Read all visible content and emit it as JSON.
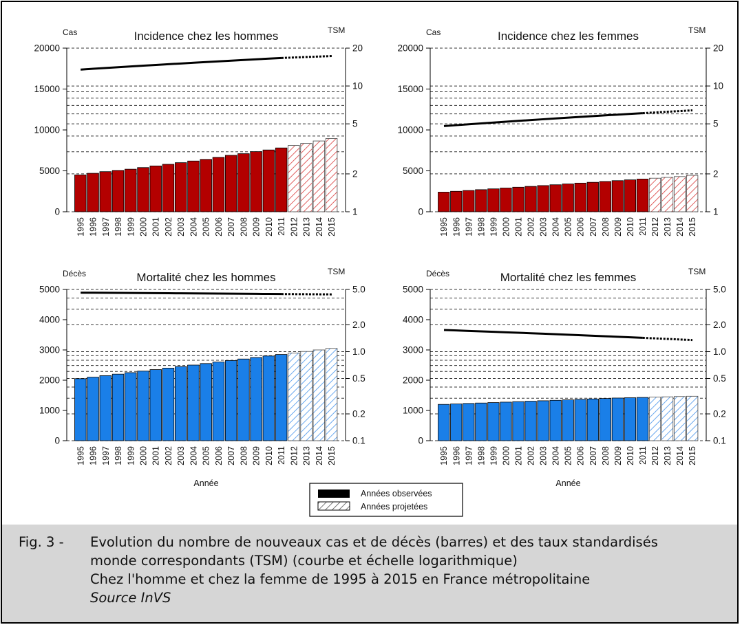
{
  "chart_data": [
    {
      "type": "bar",
      "title": "Incidence chez les hommes",
      "ylabel": "Cas",
      "y2label": "TSM",
      "xlabel": "",
      "ylim": [
        0,
        20000
      ],
      "yticks": [
        0,
        5000,
        10000,
        15000,
        20000
      ],
      "y2scale": "log",
      "y2lim": [
        1,
        20
      ],
      "y2ticks": [
        1,
        2,
        5,
        10,
        20
      ],
      "categories": [
        "1995",
        "1996",
        "1997",
        "1998",
        "1999",
        "2000",
        "2001",
        "2002",
        "2003",
        "2004",
        "2005",
        "2006",
        "2007",
        "2008",
        "2009",
        "2010",
        "2011",
        "2012",
        "2013",
        "2014",
        "2015"
      ],
      "observed_until": "2011",
      "bar_color": "#b30000",
      "values": [
        4500,
        4700,
        4900,
        5050,
        5200,
        5400,
        5600,
        5800,
        6000,
        6200,
        6400,
        6650,
        6900,
        7100,
        7350,
        7550,
        7800,
        8100,
        8350,
        8650,
        8950
      ],
      "tsm": [
        13.5,
        13.7,
        13.9,
        14.1,
        14.3,
        14.5,
        14.7,
        14.9,
        15.1,
        15.3,
        15.5,
        15.7,
        15.9,
        16.1,
        16.3,
        16.5,
        16.7,
        16.85,
        17.0,
        17.15,
        17.3
      ],
      "grid": true
    },
    {
      "type": "bar",
      "title": "Incidence chez les femmes",
      "ylabel": "Cas",
      "y2label": "TSM",
      "xlabel": "",
      "ylim": [
        0,
        20000
      ],
      "yticks": [
        0,
        5000,
        10000,
        15000,
        20000
      ],
      "y2scale": "log",
      "y2lim": [
        1,
        20
      ],
      "y2ticks": [
        1,
        2,
        5,
        10,
        20
      ],
      "categories": [
        "1995",
        "1996",
        "1997",
        "1998",
        "1999",
        "2000",
        "2001",
        "2002",
        "2003",
        "2004",
        "2005",
        "2006",
        "2007",
        "2008",
        "2009",
        "2010",
        "2011",
        "2012",
        "2013",
        "2014",
        "2015"
      ],
      "observed_until": "2011",
      "bar_color": "#b30000",
      "values": [
        2400,
        2500,
        2600,
        2700,
        2800,
        2900,
        3000,
        3100,
        3200,
        3300,
        3400,
        3500,
        3600,
        3700,
        3800,
        3900,
        4000,
        4100,
        4200,
        4300,
        4450
      ],
      "tsm": [
        4.8,
        4.88,
        4.96,
        5.04,
        5.12,
        5.2,
        5.28,
        5.36,
        5.44,
        5.52,
        5.6,
        5.68,
        5.76,
        5.84,
        5.92,
        6.0,
        6.08,
        6.16,
        6.24,
        6.32,
        6.4
      ],
      "grid": true
    },
    {
      "type": "bar",
      "title": "Mortalité chez les hommes",
      "ylabel": "Décès",
      "y2label": "TSM",
      "xlabel": "Année",
      "ylim": [
        0,
        5000
      ],
      "yticks": [
        0,
        1000,
        2000,
        3000,
        4000,
        5000
      ],
      "y2scale": "log",
      "y2lim": [
        0.1,
        5.0
      ],
      "y2ticks": [
        0.1,
        0.2,
        0.5,
        1.0,
        2.0,
        5.0
      ],
      "y2ticklabels": [
        "0.1",
        "0.2",
        "0.5",
        "1.0",
        "2.0",
        "5.0"
      ],
      "categories": [
        "1995",
        "1996",
        "1997",
        "1998",
        "1999",
        "2000",
        "2001",
        "2002",
        "2003",
        "2004",
        "2005",
        "2006",
        "2007",
        "2008",
        "2009",
        "2010",
        "2011",
        "2012",
        "2013",
        "2014",
        "2015"
      ],
      "observed_until": "2011",
      "bar_color": "#1a7fe8",
      "values": [
        2050,
        2100,
        2150,
        2200,
        2250,
        2300,
        2350,
        2400,
        2450,
        2500,
        2550,
        2600,
        2650,
        2700,
        2750,
        2800,
        2850,
        2900,
        2950,
        3000,
        3050
      ],
      "tsm": [
        4.6,
        4.59,
        4.58,
        4.57,
        4.56,
        4.55,
        4.54,
        4.53,
        4.52,
        4.51,
        4.5,
        4.49,
        4.48,
        4.47,
        4.46,
        4.45,
        4.44,
        4.43,
        4.42,
        4.41,
        4.4
      ],
      "grid": true
    },
    {
      "type": "bar",
      "title": "Mortalité chez les femmes",
      "ylabel": "Décès",
      "y2label": "TSM",
      "xlabel": "Année",
      "ylim": [
        0,
        5000
      ],
      "yticks": [
        0,
        1000,
        2000,
        3000,
        4000,
        5000
      ],
      "y2scale": "log",
      "y2lim": [
        0.1,
        5.0
      ],
      "y2ticks": [
        0.1,
        0.2,
        0.5,
        1.0,
        2.0,
        5.0
      ],
      "y2ticklabels": [
        "0.1",
        "0.2",
        "0.5",
        "1.0",
        "2.0",
        "5.0"
      ],
      "categories": [
        "1995",
        "1996",
        "1997",
        "1998",
        "1999",
        "2000",
        "2001",
        "2002",
        "2003",
        "2004",
        "2005",
        "2006",
        "2007",
        "2008",
        "2009",
        "2010",
        "2011",
        "2012",
        "2013",
        "2014",
        "2015"
      ],
      "observed_until": "2011",
      "bar_color": "#1a7fe8",
      "values": [
        1200,
        1215,
        1230,
        1245,
        1260,
        1275,
        1290,
        1305,
        1320,
        1335,
        1350,
        1365,
        1380,
        1395,
        1410,
        1420,
        1430,
        1440,
        1450,
        1460,
        1470
      ],
      "tsm": [
        1.75,
        1.73,
        1.71,
        1.69,
        1.67,
        1.65,
        1.63,
        1.61,
        1.59,
        1.57,
        1.55,
        1.53,
        1.51,
        1.49,
        1.47,
        1.45,
        1.43,
        1.41,
        1.39,
        1.37,
        1.35
      ],
      "grid": true
    }
  ],
  "legend": {
    "observed": "Années observées",
    "projected": "Années projetées"
  },
  "caption": {
    "label": "Fig. 3 -",
    "line1": "Evolution du nombre de nouveaux cas et de décès (barres) et des taux standardisés",
    "line2": "monde correspondants (TSM) (courbe et échelle logarithmique)",
    "line3": "Chez l'homme et chez la femme de 1995 à 2015 en France métropolitaine",
    "source": "Source InVS"
  }
}
